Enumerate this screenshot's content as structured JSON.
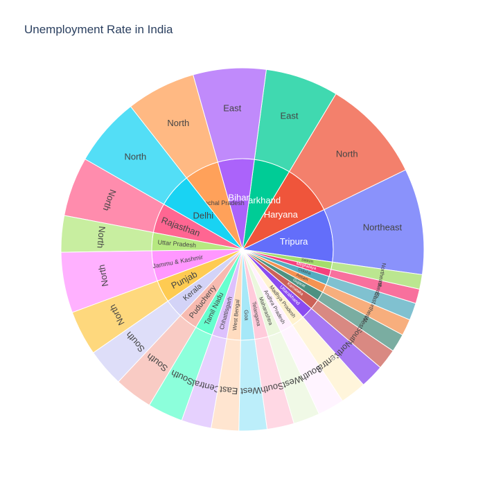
{
  "chart_data": {
    "type": "sunburst",
    "title": "Unemployment Rate in India",
    "states": [
      {
        "name": "Tripura",
        "region": "Northeast",
        "value": 28.35,
        "color": "#636efa"
      },
      {
        "name": "Haryana",
        "region": "North",
        "value": 27.48,
        "color": "#EF553B"
      },
      {
        "name": "Jharkhand",
        "region": "East",
        "value": 19.54,
        "color": "#00cc96"
      },
      {
        "name": "Bihar",
        "region": "East",
        "value": 19.47,
        "color": "#ab63fa"
      },
      {
        "name": "Himachal Pradesh",
        "region": "North",
        "value": 18.54,
        "color": "#FFA15A"
      },
      {
        "name": "Delhi",
        "region": "North",
        "value": 18.41,
        "color": "#19d3f3"
      },
      {
        "name": "Rajasthan",
        "region": "North",
        "value": 15.87,
        "color": "#FF6692"
      },
      {
        "name": "Uttar Pradesh",
        "region": "North",
        "value": 9.74,
        "color": "#B6E880"
      },
      {
        "name": "Jammu & Kashmir",
        "region": "North",
        "value": 16.19,
        "color": "#FF97FF"
      },
      {
        "name": "Punjab",
        "region": "North",
        "value": 11.98,
        "color": "#FECB52"
      },
      {
        "name": "Kerala",
        "region": "South",
        "value": 10.12,
        "color": "#d3d3f7"
      },
      {
        "name": "Puducherry",
        "region": "South",
        "value": 10.22,
        "color": "#f7bab0"
      },
      {
        "name": "Tamil Nadu",
        "region": "South",
        "value": 9.43,
        "color": "#66ffcf"
      },
      {
        "name": "Chhattisgarh",
        "region": "Central",
        "value": 8.0,
        "color": "#ddc1fd"
      },
      {
        "name": "West Bengal",
        "region": "East",
        "value": 7.35,
        "color": "#ffdcc0"
      },
      {
        "name": "Goa",
        "region": "West",
        "value": 7.47,
        "color": "#a6e8f8"
      },
      {
        "name": "Telangana",
        "region": "South",
        "value": 7.22,
        "color": "#ffcbdb"
      },
      {
        "name": "Maharashtra",
        "region": "West",
        "value": 7.07,
        "color": "#ebf7dd"
      },
      {
        "name": "Andhra Pradesh",
        "region": "South",
        "value": 7.06,
        "color": "#fff0ff"
      },
      {
        "name": "Madhya Pradesh",
        "region": "Central",
        "value": 6.96,
        "color": "#fff2cf"
      },
      {
        "name": "Chandigarh",
        "region": "North",
        "value": 0.0,
        "color": "#0510dc"
      },
      {
        "name": "Uttarakhand",
        "region": "North",
        "value": 6.35,
        "color": "#8a4bf0"
      },
      {
        "name": "Karnataka",
        "region": "South",
        "value": 5.5,
        "color": "#cc6158"
      },
      {
        "name": "Gujarat",
        "region": "West",
        "value": 4.9,
        "color": "#4d9181"
      },
      {
        "name": "Assam",
        "region": "Northeast",
        "value": 4.4,
        "color": "#f49352"
      },
      {
        "name": "Odisha",
        "region": "East",
        "value": 4.6,
        "color": "#55acc0"
      },
      {
        "name": "Meghalaya",
        "region": "Northeast",
        "value": 3.87,
        "color": "#f5407c"
      },
      {
        "name": "Sikkim",
        "region": "Northeast",
        "value": 3.88,
        "color": "#a4dd6b"
      }
    ]
  }
}
